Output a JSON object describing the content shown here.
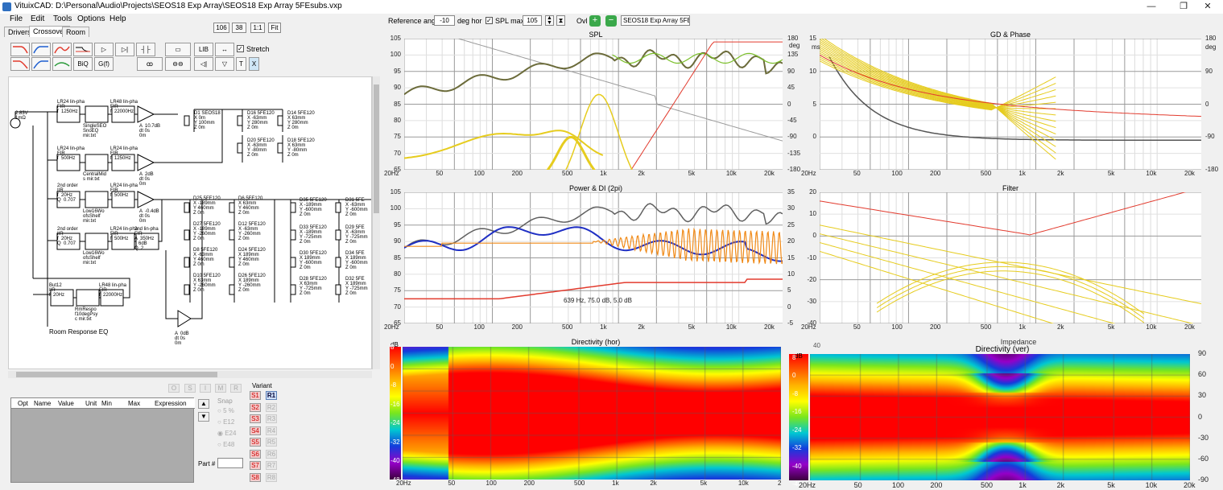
{
  "window": {
    "title": "VituixCAD: D:\\Personal\\Audio\\Projects\\SEOS18 Exp Array\\SEOS18 Exp Array 5FEsubs.vxp",
    "minimize": "—",
    "maximize": "❐",
    "close": "✕"
  },
  "menu": [
    "File",
    "Edit",
    "Tools",
    "Options",
    "Help"
  ],
  "tabs": [
    "Drivers",
    "Crossover",
    "Room"
  ],
  "zoom": {
    "a": "106",
    "b": "38",
    "c": "1:1",
    "d": "Fit"
  },
  "toolbar": {
    "lib": "LIB",
    "biq": "BiQ",
    "gf": "G(f)",
    "t": "T",
    "x": "X",
    "stretch": "Stretch"
  },
  "schematic": {
    "source": "2.83V\n1mΩ",
    "row1": {
      "flt": "LR24 lin-pha\nFIR\nf  1250Hz",
      "g": "SingleSEO\nSnoEQ\nmir.txt",
      "flt2": "LR48 lin-pha\nFIR\nf  22000Hz",
      "amp": "A  10.7dB\ndt 0s\n0m"
    },
    "row2": {
      "flt": "LR24 lin-pha\nFIR\nf  500Hz",
      "g": "CentralMid\ns mir.txt",
      "flt2": "LR24 lin-pha\nFIR\nf  1250Hz",
      "amp": "A  2dB\ndt 0s\n0m"
    },
    "row3": {
      "flt": "2nd order\nIIR\nf  20Hz\nQ  0.707",
      "g": "Low16Wo\nofsShelf\nmir.txt",
      "flt2": "LR24 lin-pha\nFIR\nf  500Hz",
      "amp": "A  -0.4dB\ndt 0s\n0m"
    },
    "row4": {
      "flt": "2nd order\nIIR\nf  20Hz\nQ  0.707",
      "g": "Low16Wo\nofsShelf\nmir.txt",
      "flt2": "LR24 lin-pha\nFIR\nf  500Hz",
      "flt3": "2nd lin-pha\nFIR\nA  350Hz\n   6dB\nQ  2"
    },
    "room": {
      "flt": "But12\nIIR\nf  20Hz",
      "g": "RmRespo\nf10degPsy\nc mir.txt",
      "flt2": "LR48 lin-pha\nFIR\nf  22000Hz",
      "label": "Room Response EQ",
      "amp": "A  0dB\ndt 0s\n0m"
    },
    "drivers_top": [
      "D1 SEOS18\nX 0m\nY 100mm\nZ 0m",
      "D16 5FE120\nX -63mm\nY 280mm\nZ 0m",
      "D14 5FE120\nX 63mm\nY 280mm\nZ 0m",
      "D20 5FE120\nX -63mm\nY -80mm\nZ 0m",
      "D18 5FE120\nX 63mm\nY -80mm\nZ 0m"
    ],
    "drivers_mid": [
      "D25 5FE120\nX -189mm\nY 460mm\nZ 0m",
      "D6 5FE120\nX 63mm\nY 460mm\nZ 0m",
      "D27 5FE120\nX -189mm\nY -260mm\nZ 0m",
      "D12 5FE120\nX -63mm\nY -260mm\nZ 0m",
      "D8 5FE120\nX -63mm\nY 460mm\nZ 0m",
      "D24 5FE120\nX 189mm\nY 460mm\nZ 0m",
      "D10 5FE120\nX 63mm\nY -260mm\nZ 0m",
      "D26 5FE120\nX 189mm\nY -260mm\nZ 0m"
    ],
    "drivers_right": [
      "D35 5FE120\nX -189mm\nY -600mm\nZ 0m",
      "D31 5FE\nX -63mm\nY -600mm\nZ 0m",
      "D33 5FE120\nX -189mm\nY -725mm\nZ 0m",
      "D29 5FE\nX -63mm\nY -725mm\nZ 0m",
      "D30 5FE120\nX 189mm\nY -600mm\nZ 0m",
      "D34 5FE\nX 189mm\nY -600mm\nZ 0m",
      "D28 5FE120\nX 63mm\nY -725mm\nZ 0m",
      "D32 5FE\nX 189mm\nY -725mm\nZ 0m"
    ]
  },
  "nodes": [
    "O",
    "S",
    "I",
    "M",
    "R"
  ],
  "params_table": {
    "headers": [
      "Opt",
      "Name",
      "Value",
      "Unit",
      "Min",
      "Max",
      "Expression"
    ]
  },
  "snap": {
    "label": "Snap",
    "options": [
      "5 %",
      "E12",
      "E24",
      "E48"
    ],
    "selected": "E24"
  },
  "variant": {
    "label": "Variant",
    "left": [
      "S1",
      "S2",
      "S3",
      "S4",
      "S5",
      "S6",
      "S7",
      "S8"
    ],
    "right": [
      "R1",
      "R2",
      "R3",
      "R4",
      "R5",
      "R6",
      "R7",
      "R8"
    ]
  },
  "part": {
    "label": "Part #",
    "value": ""
  },
  "topbar": {
    "ref_angle_label": "Reference angle",
    "ref_angle": "-10",
    "ref_unit": "deg hor",
    "splmax_label": "SPL max",
    "splmax": "105",
    "ovl": "Ovl",
    "ovl_value": "SEOS18 Exp Array 5FEsubs"
  },
  "x_ticks": [
    "20Hz",
    "50",
    "100",
    "200",
    "500",
    "1k",
    "2k",
    "5k",
    "10k",
    "20k"
  ],
  "spl": {
    "title": "SPL",
    "ylabels": [
      "105",
      "100",
      "95",
      "90",
      "85",
      "80",
      "75",
      "70",
      "65"
    ],
    "y2unit": "deg",
    "y2labels": [
      "180",
      "135",
      "90",
      "45",
      "0",
      "-45",
      "-90",
      "-135",
      "-180"
    ]
  },
  "gd": {
    "title": "GD & Phase",
    "yunit": "ms",
    "ylabels": [
      "15",
      "10",
      "5",
      "0"
    ],
    "y2unit": "deg",
    "y2labels": [
      "180",
      "90",
      "0",
      "-90",
      "-180"
    ]
  },
  "power": {
    "title": "Power & DI (2pi)",
    "ylabels": [
      "105",
      "100",
      "95",
      "90",
      "85",
      "80",
      "75",
      "70",
      "65"
    ],
    "y2labels": [
      "35",
      "30",
      "25",
      "20",
      "15",
      "10",
      "5",
      "0",
      "-5"
    ],
    "cursor": "639 Hz, 75.0 dB, 5.0 dB"
  },
  "filter": {
    "title": "Filter",
    "ylabels": [
      "20",
      "10",
      "0",
      "-10",
      "-20",
      "-30",
      "-40"
    ]
  },
  "dir_hor": {
    "title": "Directivity (hor)",
    "unit": "dB",
    "levels": [
      "8",
      "0",
      "-8",
      "-16",
      "-24",
      "-32",
      "-40",
      "-48"
    ],
    "last_tick": "2"
  },
  "dir_ver": {
    "title": "Directivity (ver)",
    "back_title": "Impedance",
    "unit": "dB",
    "levels": [
      "8",
      "0",
      "-8",
      "-16",
      "-24",
      "-32",
      "-40",
      "-48"
    ],
    "angles": [
      "90",
      "60",
      "30",
      "0",
      "-30",
      "-60",
      "-90"
    ],
    "ylabel_under": "40"
  },
  "colors": {
    "red": "#e23b2e",
    "yellow": "#e6cc1e",
    "gray": "#5a5a5a",
    "olive": "#6b6b3a",
    "blue": "#1f2fc4",
    "orange": "#f08a18",
    "green": "#7bbf2a"
  }
}
